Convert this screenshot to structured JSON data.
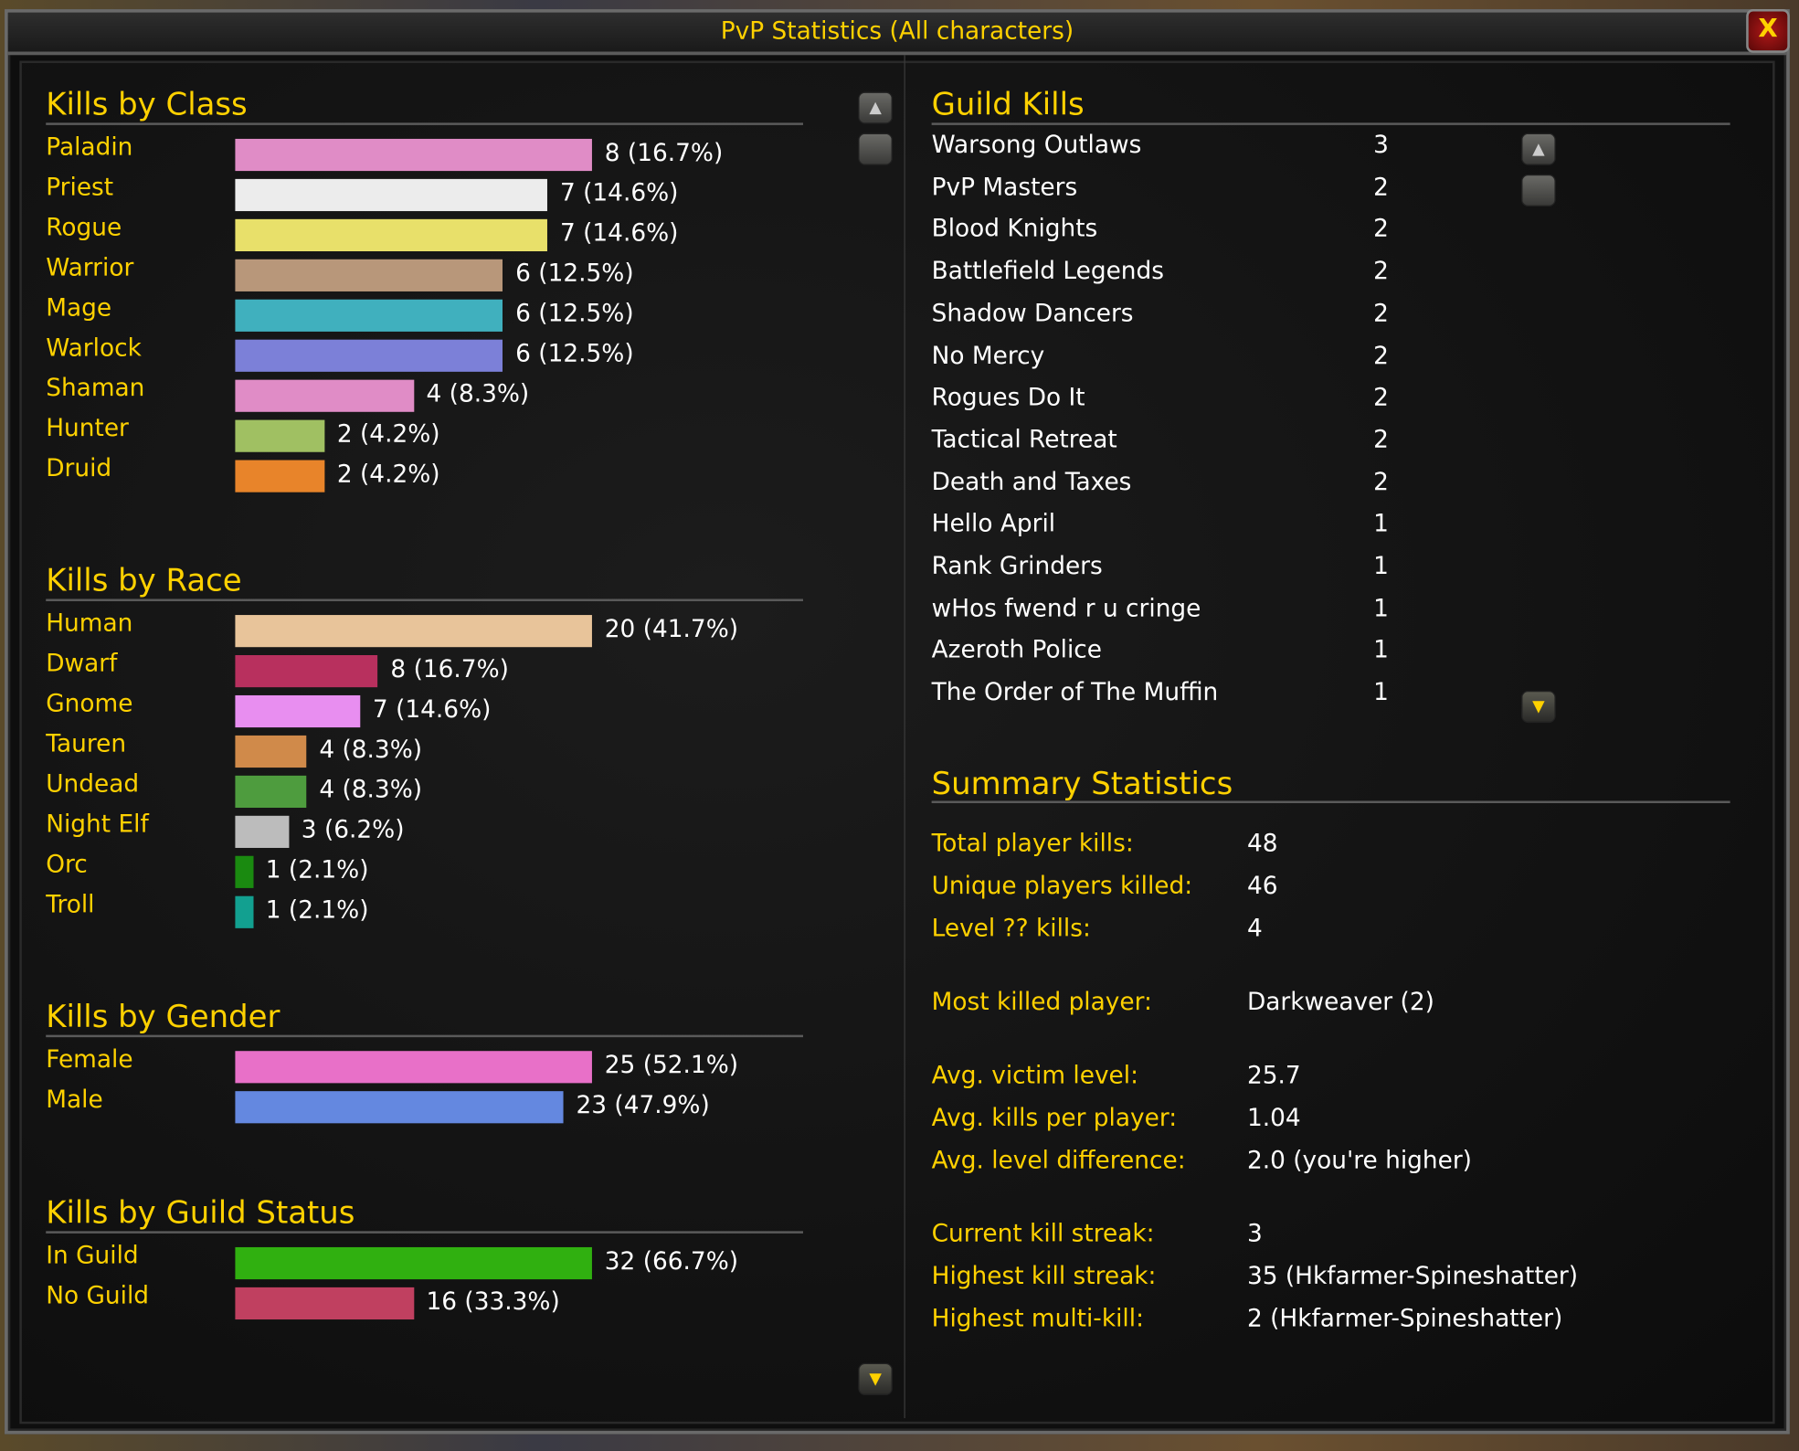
{
  "window": {
    "title": "PvP Statistics (All characters)",
    "close_label": "X"
  },
  "colors": {
    "heading": "#ffd100",
    "label": "#ffd100",
    "value": "#ffffff"
  },
  "icons": {
    "scroll_up": "scroll-up-arrow-icon",
    "scroll_thumb": "scroll-thumb",
    "scroll_down": "scroll-down-arrow-icon"
  },
  "left": {
    "sections": [
      {
        "title": "Kills by Class",
        "rows": [
          {
            "label": "Paladin",
            "value": 8,
            "text": "8 (16.7%)",
            "color": "#e08cc6"
          },
          {
            "label": "Priest",
            "value": 7,
            "text": "7 (14.6%)",
            "color": "#ececec"
          },
          {
            "label": "Rogue",
            "value": 7,
            "text": "7 (14.6%)",
            "color": "#e8e06a"
          },
          {
            "label": "Warrior",
            "value": 6,
            "text": "6 (12.5%)",
            "color": "#b8977a"
          },
          {
            "label": "Mage",
            "value": 6,
            "text": "6 (12.5%)",
            "color": "#40b0be"
          },
          {
            "label": "Warlock",
            "value": 6,
            "text": "6 (12.5%)",
            "color": "#7c80d8"
          },
          {
            "label": "Shaman",
            "value": 4,
            "text": "4 (8.3%)",
            "color": "#e08cc6"
          },
          {
            "label": "Hunter",
            "value": 2,
            "text": "2 (4.2%)",
            "color": "#a0c062"
          },
          {
            "label": "Druid",
            "value": 2,
            "text": "2 (4.2%)",
            "color": "#e8842a"
          }
        ]
      },
      {
        "title": "Kills by Race",
        "rows": [
          {
            "label": "Human",
            "value": 20,
            "text": "20 (41.7%)",
            "color": "#e8c49a"
          },
          {
            "label": "Dwarf",
            "value": 8,
            "text": "8 (16.7%)",
            "color": "#b8305e"
          },
          {
            "label": "Gnome",
            "value": 7,
            "text": "7 (14.6%)",
            "color": "#e88ef0"
          },
          {
            "label": "Tauren",
            "value": 4,
            "text": "4 (8.3%)",
            "color": "#d08a4a"
          },
          {
            "label": "Undead",
            "value": 4,
            "text": "4 (8.3%)",
            "color": "#4e9c3e"
          },
          {
            "label": "Night Elf",
            "value": 3,
            "text": "3 (6.2%)",
            "color": "#bcbcbc"
          },
          {
            "label": "Orc",
            "value": 1,
            "text": "1 (2.1%)",
            "color": "#1a8a10"
          },
          {
            "label": "Troll",
            "value": 1,
            "text": "1 (2.1%)",
            "color": "#12a090"
          }
        ]
      },
      {
        "title": "Kills by Gender",
        "rows": [
          {
            "label": "Female",
            "value": 25,
            "text": "25 (52.1%)",
            "color": "#e870c8"
          },
          {
            "label": "Male",
            "value": 23,
            "text": "23 (47.9%)",
            "color": "#6488e0"
          }
        ]
      },
      {
        "title": "Kills by Guild Status",
        "rows": [
          {
            "label": "In Guild",
            "value": 32,
            "text": "32 (66.7%)",
            "color": "#30b010"
          },
          {
            "label": "No Guild",
            "value": 16,
            "text": "16 (33.3%)",
            "color": "#c04060"
          }
        ]
      }
    ]
  },
  "guild_kills": {
    "title": "Guild Kills",
    "rows": [
      {
        "name": "Warsong Outlaws",
        "count": "3"
      },
      {
        "name": "PvP Masters",
        "count": "2"
      },
      {
        "name": "Blood Knights",
        "count": "2"
      },
      {
        "name": "Battlefield Legends",
        "count": "2"
      },
      {
        "name": "Shadow Dancers",
        "count": "2"
      },
      {
        "name": "No Mercy",
        "count": "2"
      },
      {
        "name": "Rogues Do It",
        "count": "2"
      },
      {
        "name": "Tactical Retreat",
        "count": "2"
      },
      {
        "name": "Death and Taxes",
        "count": "2"
      },
      {
        "name": "Hello April",
        "count": "1"
      },
      {
        "name": "Rank Grinders",
        "count": "1"
      },
      {
        "name": "wHos fwend r u cringe",
        "count": "1"
      },
      {
        "name": "Azeroth Police",
        "count": "1"
      },
      {
        "name": "The Order of The Muffin",
        "count": "1"
      }
    ]
  },
  "summary": {
    "title": "Summary Statistics",
    "rows": [
      {
        "label": "Total player kills:",
        "value": "48"
      },
      {
        "label": "Unique players killed:",
        "value": "46"
      },
      {
        "label": "Level ?? kills:",
        "value": "4"
      },
      {
        "label": "Most killed player:",
        "value": "Darkweaver (2)"
      },
      {
        "label": "Avg. victim level:",
        "value": "25.7"
      },
      {
        "label": "Avg. kills per player:",
        "value": "1.04"
      },
      {
        "label": "Avg. level difference:",
        "value": "2.0 (you're higher)"
      },
      {
        "label": "Current kill streak:",
        "value": "3"
      },
      {
        "label": "Highest kill streak:",
        "value": "35 (Hkfarmer-Spineshatter)"
      },
      {
        "label": "Highest multi-kill:",
        "value": "2 (Hkfarmer-Spineshatter)"
      }
    ]
  }
}
